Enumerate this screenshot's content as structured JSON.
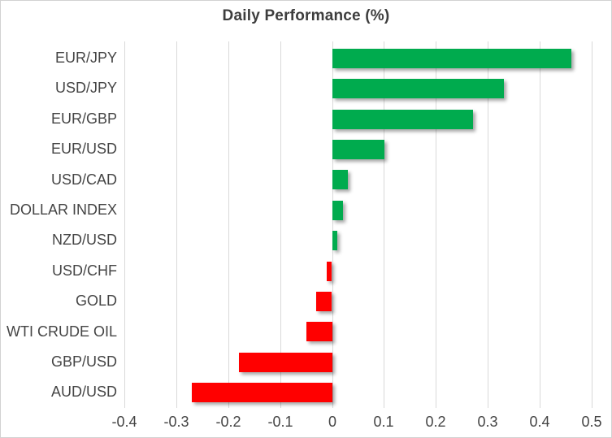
{
  "chart_data": {
    "type": "bar",
    "orientation": "horizontal",
    "title": "Daily Performance (%)",
    "categories": [
      "EUR/JPY",
      "USD/JPY",
      "EUR/GBP",
      "EUR/USD",
      "USD/CAD",
      "DOLLAR INDEX",
      "NZD/USD",
      "USD/CHF",
      "GOLD",
      "WTI CRUDE OIL",
      "GBP/USD",
      "AUD/USD"
    ],
    "values": [
      0.46,
      0.33,
      0.27,
      0.1,
      0.03,
      0.02,
      0.01,
      -0.01,
      -0.03,
      -0.05,
      -0.18,
      -0.27
    ],
    "xlim": [
      -0.4,
      0.5
    ],
    "xticks": [
      -0.4,
      -0.3,
      -0.2,
      -0.1,
      0,
      0.1,
      0.2,
      0.3,
      0.4,
      0.5
    ],
    "xtick_labels": [
      "-0.4",
      "-0.3",
      "-0.2",
      "-0.1",
      "0",
      "0.1",
      "0.2",
      "0.3",
      "0.4",
      "0.5"
    ],
    "grid": true,
    "legend": "none",
    "colors": {
      "positive_bar": "#00AB4E",
      "negative_bar": "#FF0000",
      "gridline": "#D9D9D9",
      "title_text": "#3D3D3D",
      "axis_text": "#454545"
    }
  }
}
